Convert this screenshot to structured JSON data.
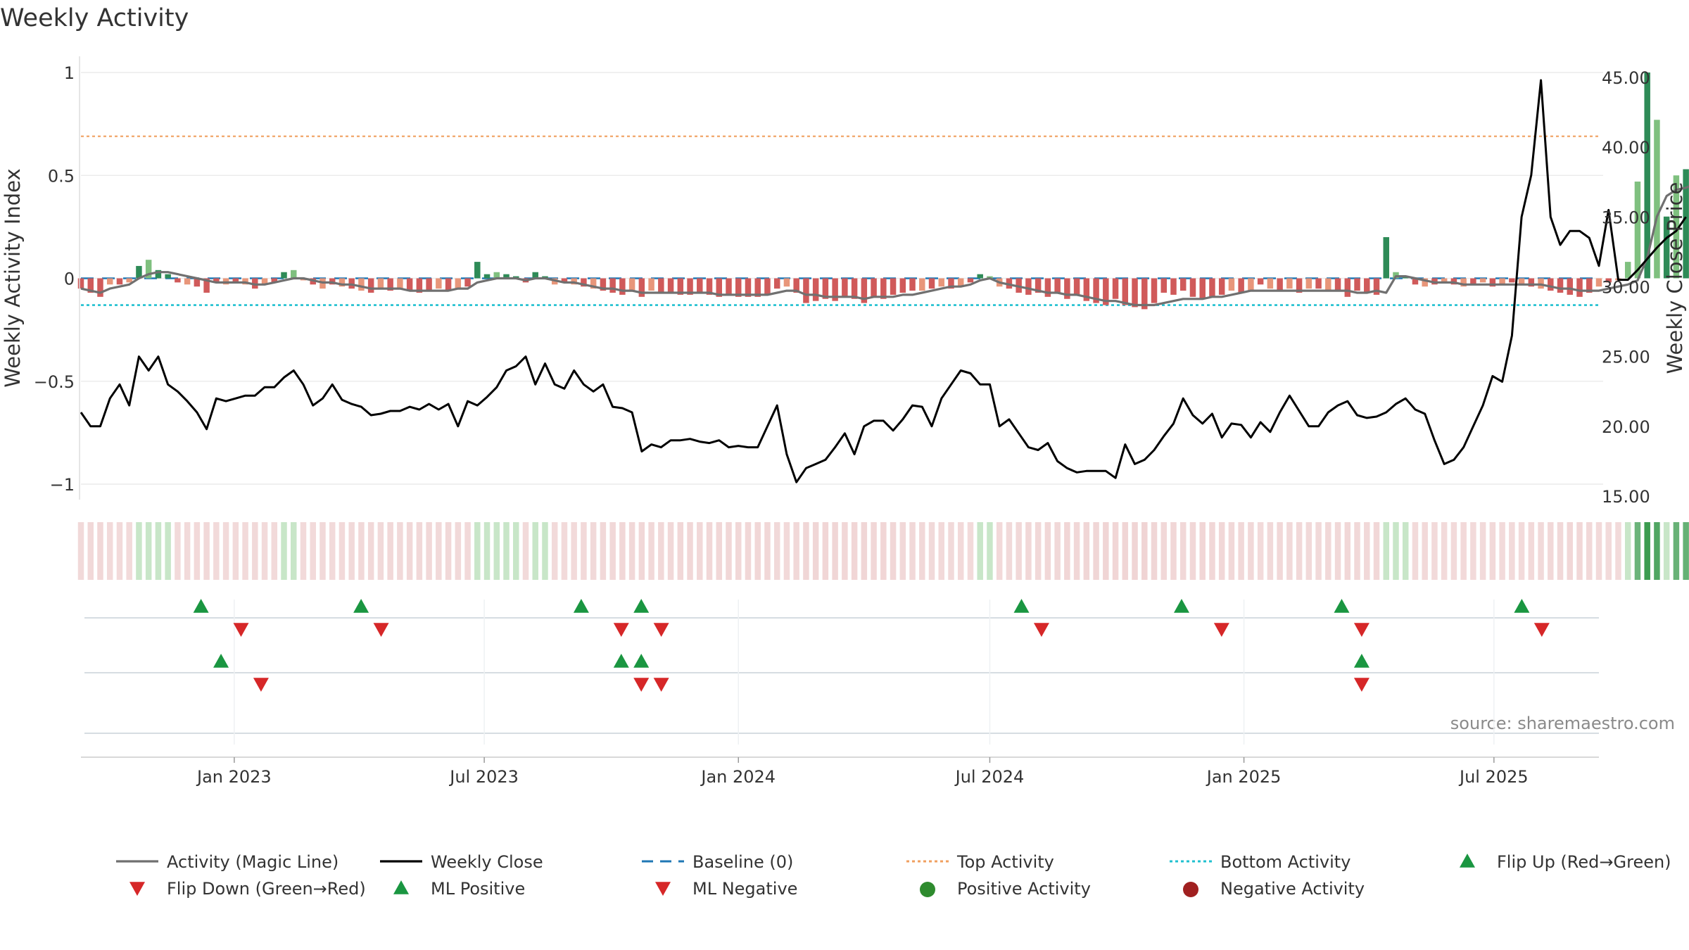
{
  "chart_data": {
    "type": "bar",
    "title": "Weekly Activity",
    "ylabel": "Weekly Activity Index",
    "y2label": "Weekly Close Price",
    "ylim": [
      -1.1,
      1.05
    ],
    "y2lim": [
      15,
      45.5
    ],
    "yticks": [
      {
        "value": 1,
        "label": "1"
      },
      {
        "value": 0.5,
        "label": "0.5"
      },
      {
        "value": 0,
        "label": "0"
      },
      {
        "value": -0.5,
        "label": "−0.5"
      },
      {
        "value": -1,
        "label": "−1"
      }
    ],
    "y2ticks": [
      {
        "value": 45,
        "label": "45.00"
      },
      {
        "value": 40,
        "label": "40.00"
      },
      {
        "value": 35,
        "label": "35.00"
      },
      {
        "value": 30,
        "label": "30.00"
      },
      {
        "value": 25,
        "label": "25.00"
      },
      {
        "value": 20,
        "label": "20.00"
      },
      {
        "value": 15,
        "label": "15.00"
      }
    ],
    "x_start": "2022-09-12",
    "x_end": "2025-09-15",
    "xticks": [
      {
        "date": "2023-01-01",
        "label": "Jan 2023"
      },
      {
        "date": "2023-07-01",
        "label": "Jul 2023"
      },
      {
        "date": "2024-01-01",
        "label": "Jan 2024"
      },
      {
        "date": "2024-07-01",
        "label": "Jul 2024"
      },
      {
        "date": "2025-01-01",
        "label": "Jan 2025"
      },
      {
        "date": "2025-07-01",
        "label": "Jul 2025"
      }
    ],
    "top_activity": 0.69,
    "bottom_activity": -0.13,
    "baseline": 0,
    "activity": [
      -0.05,
      -0.07,
      -0.09,
      -0.03,
      -0.03,
      -0.02,
      0.06,
      0.09,
      0.04,
      0.02,
      -0.02,
      -0.03,
      -0.04,
      -0.07,
      -0.02,
      -0.03,
      -0.02,
      -0.03,
      -0.05,
      -0.03,
      -0.02,
      0.03,
      0.04,
      -0.01,
      -0.03,
      -0.05,
      -0.03,
      -0.04,
      -0.05,
      -0.06,
      -0.07,
      -0.05,
      -0.06,
      -0.05,
      -0.06,
      -0.07,
      -0.06,
      -0.05,
      -0.06,
      -0.05,
      -0.04,
      0.08,
      0.02,
      0.03,
      0.02,
      0.01,
      -0.02,
      0.03,
      0.01,
      -0.03,
      -0.02,
      -0.03,
      -0.04,
      -0.05,
      -0.06,
      -0.07,
      -0.08,
      -0.06,
      -0.09,
      -0.06,
      -0.07,
      -0.07,
      -0.08,
      -0.08,
      -0.07,
      -0.08,
      -0.09,
      -0.08,
      -0.09,
      -0.09,
      -0.09,
      -0.08,
      -0.05,
      -0.04,
      -0.07,
      -0.12,
      -0.11,
      -0.1,
      -0.11,
      -0.09,
      -0.1,
      -0.12,
      -0.09,
      -0.1,
      -0.08,
      -0.07,
      -0.06,
      -0.06,
      -0.05,
      -0.04,
      -0.05,
      -0.04,
      -0.02,
      0.02,
      0.01,
      -0.04,
      -0.05,
      -0.07,
      -0.08,
      -0.07,
      -0.09,
      -0.07,
      -0.1,
      -0.08,
      -0.11,
      -0.12,
      -0.13,
      -0.1,
      -0.13,
      -0.14,
      -0.15,
      -0.12,
      -0.07,
      -0.08,
      -0.06,
      -0.09,
      -0.1,
      -0.09,
      -0.08,
      -0.06,
      -0.07,
      -0.06,
      -0.03,
      -0.05,
      -0.06,
      -0.05,
      -0.07,
      -0.05,
      -0.05,
      -0.06,
      -0.06,
      -0.09,
      -0.06,
      -0.07,
      -0.08,
      0.2,
      0.03,
      0.01,
      -0.03,
      -0.04,
      -0.03,
      -0.02,
      -0.03,
      -0.04,
      -0.03,
      -0.02,
      -0.04,
      -0.03,
      -0.02,
      -0.03,
      -0.04,
      -0.05,
      -0.06,
      -0.07,
      -0.08,
      -0.09,
      -0.07,
      -0.04,
      -0.02,
      -0.01,
      0.08,
      0.47,
      1.0,
      0.77,
      0.3,
      0.5,
      0.53,
      0.51,
      0.33,
      0.29,
      0.61,
      0.42,
      0.17,
      0.18,
      0.34,
      0.21,
      0.27,
      0.28
    ],
    "magic_line": [
      -0.05,
      -0.06,
      -0.07,
      -0.05,
      -0.04,
      -0.03,
      0.0,
      0.02,
      0.03,
      0.03,
      0.02,
      0.01,
      0.0,
      -0.01,
      -0.02,
      -0.02,
      -0.02,
      -0.02,
      -0.03,
      -0.03,
      -0.02,
      -0.01,
      0.0,
      0.0,
      -0.01,
      -0.02,
      -0.02,
      -0.03,
      -0.03,
      -0.04,
      -0.05,
      -0.05,
      -0.05,
      -0.05,
      -0.06,
      -0.06,
      -0.06,
      -0.06,
      -0.06,
      -0.05,
      -0.05,
      -0.02,
      -0.01,
      0.0,
      0.0,
      0.0,
      -0.01,
      0.0,
      0.0,
      -0.01,
      -0.02,
      -0.02,
      -0.03,
      -0.04,
      -0.05,
      -0.05,
      -0.06,
      -0.06,
      -0.07,
      -0.07,
      -0.07,
      -0.07,
      -0.07,
      -0.07,
      -0.07,
      -0.07,
      -0.08,
      -0.08,
      -0.08,
      -0.08,
      -0.08,
      -0.08,
      -0.07,
      -0.06,
      -0.06,
      -0.08,
      -0.08,
      -0.09,
      -0.09,
      -0.09,
      -0.09,
      -0.1,
      -0.09,
      -0.09,
      -0.09,
      -0.08,
      -0.08,
      -0.07,
      -0.06,
      -0.05,
      -0.04,
      -0.04,
      -0.03,
      -0.01,
      0.0,
      -0.02,
      -0.03,
      -0.04,
      -0.05,
      -0.06,
      -0.07,
      -0.07,
      -0.08,
      -0.08,
      -0.09,
      -0.1,
      -0.11,
      -0.11,
      -0.12,
      -0.13,
      -0.13,
      -0.13,
      -0.12,
      -0.11,
      -0.1,
      -0.1,
      -0.1,
      -0.09,
      -0.09,
      -0.08,
      -0.07,
      -0.06,
      -0.06,
      -0.06,
      -0.06,
      -0.06,
      -0.06,
      -0.06,
      -0.06,
      -0.06,
      -0.06,
      -0.06,
      -0.07,
      -0.07,
      -0.06,
      -0.07,
      0.01,
      0.01,
      0.0,
      -0.01,
      -0.02,
      -0.02,
      -0.02,
      -0.03,
      -0.03,
      -0.03,
      -0.03,
      -0.03,
      -0.03,
      -0.03,
      -0.03,
      -0.03,
      -0.04,
      -0.05,
      -0.05,
      -0.06,
      -0.06,
      -0.06,
      -0.05,
      -0.04,
      -0.03,
      -0.01,
      0.1,
      0.3,
      0.4,
      0.43,
      0.44,
      0.46,
      0.47,
      0.44,
      0.4,
      0.43,
      0.44,
      0.39,
      0.34,
      0.34,
      0.31,
      0.3,
      0.29
    ],
    "close": [
      21.0,
      20.0,
      20.0,
      22.0,
      23.0,
      21.5,
      25.0,
      24.0,
      25.0,
      23.0,
      22.5,
      21.8,
      21.0,
      19.8,
      22.0,
      21.8,
      22.0,
      22.2,
      22.2,
      22.8,
      22.8,
      23.5,
      24.0,
      23.0,
      21.5,
      22.0,
      23.0,
      21.9,
      21.6,
      21.4,
      20.8,
      20.9,
      21.1,
      21.1,
      21.4,
      21.2,
      21.6,
      21.2,
      21.6,
      20.0,
      21.8,
      21.5,
      22.1,
      22.8,
      24.0,
      24.3,
      25.0,
      23.0,
      24.5,
      23.0,
      22.7,
      24.0,
      23.0,
      22.5,
      23.0,
      21.4,
      21.3,
      21.0,
      18.2,
      18.7,
      18.5,
      19.0,
      19.0,
      19.1,
      18.9,
      18.8,
      19.0,
      18.5,
      18.6,
      18.5,
      18.5,
      20.0,
      21.5,
      18.0,
      16.0,
      17.0,
      17.3,
      17.6,
      18.5,
      19.5,
      18.0,
      20.0,
      20.4,
      20.4,
      19.7,
      20.5,
      21.5,
      21.4,
      20.0,
      22.0,
      23.0,
      24.0,
      23.8,
      23.0,
      23.0,
      20.0,
      20.5,
      19.5,
      18.5,
      18.3,
      18.8,
      17.5,
      17.0,
      16.7,
      16.8,
      16.8,
      16.8,
      16.3,
      18.7,
      17.3,
      17.6,
      18.3,
      19.3,
      20.2,
      22.0,
      20.8,
      20.2,
      20.9,
      19.2,
      20.2,
      20.1,
      19.2,
      20.3,
      19.6,
      21.0,
      22.2,
      21.1,
      20.0,
      20.0,
      21.0,
      21.5,
      21.8,
      20.8,
      20.6,
      20.7,
      21.0,
      21.6,
      22.0,
      21.2,
      20.9,
      19.0,
      17.3,
      17.6,
      18.5,
      20.0,
      21.5,
      23.6,
      23.2,
      26.5,
      35.0,
      38.0,
      44.8,
      35.0,
      33.0,
      34.0,
      34.0,
      33.5,
      31.5,
      35.5,
      30.5,
      30.5,
      31.2,
      32.0,
      32.8,
      33.5,
      34.0,
      35.0
    ],
    "flip_up": [
      6,
      14,
      25,
      28,
      47,
      55,
      63,
      72,
      83,
      84
    ],
    "flip_down": [
      8,
      15,
      27,
      29,
      48,
      57,
      64,
      73,
      83
    ],
    "ml_positive": [
      7,
      27,
      28,
      64,
      84
    ],
    "ml_negative": [
      9,
      28,
      29,
      64
    ]
  },
  "source": "source: sharemaestro.com",
  "legend": [
    {
      "name": "Activity (Magic Line)",
      "kind": "line",
      "color": "#707070"
    },
    {
      "name": "Weekly Close",
      "kind": "line",
      "color": "#000000"
    },
    {
      "name": "Baseline (0)",
      "kind": "dashed",
      "color": "#1f77b4"
    },
    {
      "name": "Top Activity",
      "kind": "dotted",
      "color": "#f0a060"
    },
    {
      "name": "Bottom Activity",
      "kind": "dotted",
      "color": "#20c0d0"
    },
    {
      "name": "Flip Up (Red→Green)",
      "kind": "triangle-up",
      "color": "#1a9641"
    },
    {
      "name": "Flip Down (Green→Red)",
      "kind": "triangle-down",
      "color": "#d62728"
    },
    {
      "name": "ML Positive",
      "kind": "triangle-up",
      "color": "#1a9641"
    },
    {
      "name": "ML Negative",
      "kind": "triangle-down",
      "color": "#d62728"
    },
    {
      "name": "Positive Activity",
      "kind": "circle",
      "color": "#2e8b2e"
    },
    {
      "name": "Negative Activity",
      "kind": "circle",
      "color": "#a02020"
    }
  ],
  "colors": {
    "pos_strong": "#2e8b57",
    "pos_light": "#7fc07f",
    "neg_strong": "#d05a5a",
    "neg_light": "#e8967a",
    "strip_neg": "#efd2d2",
    "strip_pos": "#c8e6c8",
    "strip_pos_strong": "#3c9c50"
  }
}
